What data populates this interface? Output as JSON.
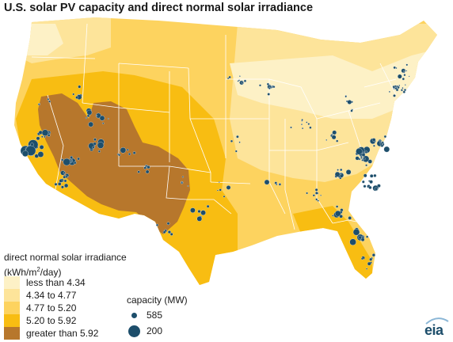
{
  "title": "U.S. solar PV capacity and direct normal solar irradiance",
  "legend": {
    "title_line1": "direct normal solar irradiance",
    "title_line2_pre": "(kWh/m",
    "title_line2_sup": "2",
    "title_line2_post": "/day)",
    "classes": [
      {
        "label": "less than 4.34",
        "color": "#fdf1c6"
      },
      {
        "label": "4.34 to 4.77",
        "color": "#fde49a"
      },
      {
        "label": "4.77 to 5.20",
        "color": "#fdd35f"
      },
      {
        "label": "5.20 to 5.92",
        "color": "#f8bd12"
      },
      {
        "label": "greater than 5.92",
        "color": "#b7772c"
      }
    ]
  },
  "capacity": {
    "title": "capacity (MW)",
    "items": [
      {
        "label": "585",
        "size": "small"
      },
      {
        "label": "200",
        "size": "large"
      }
    ]
  },
  "colors": {
    "plant": "#1d4e6b",
    "state_border": "#ffffff"
  },
  "logo": {
    "text": "eia"
  }
}
